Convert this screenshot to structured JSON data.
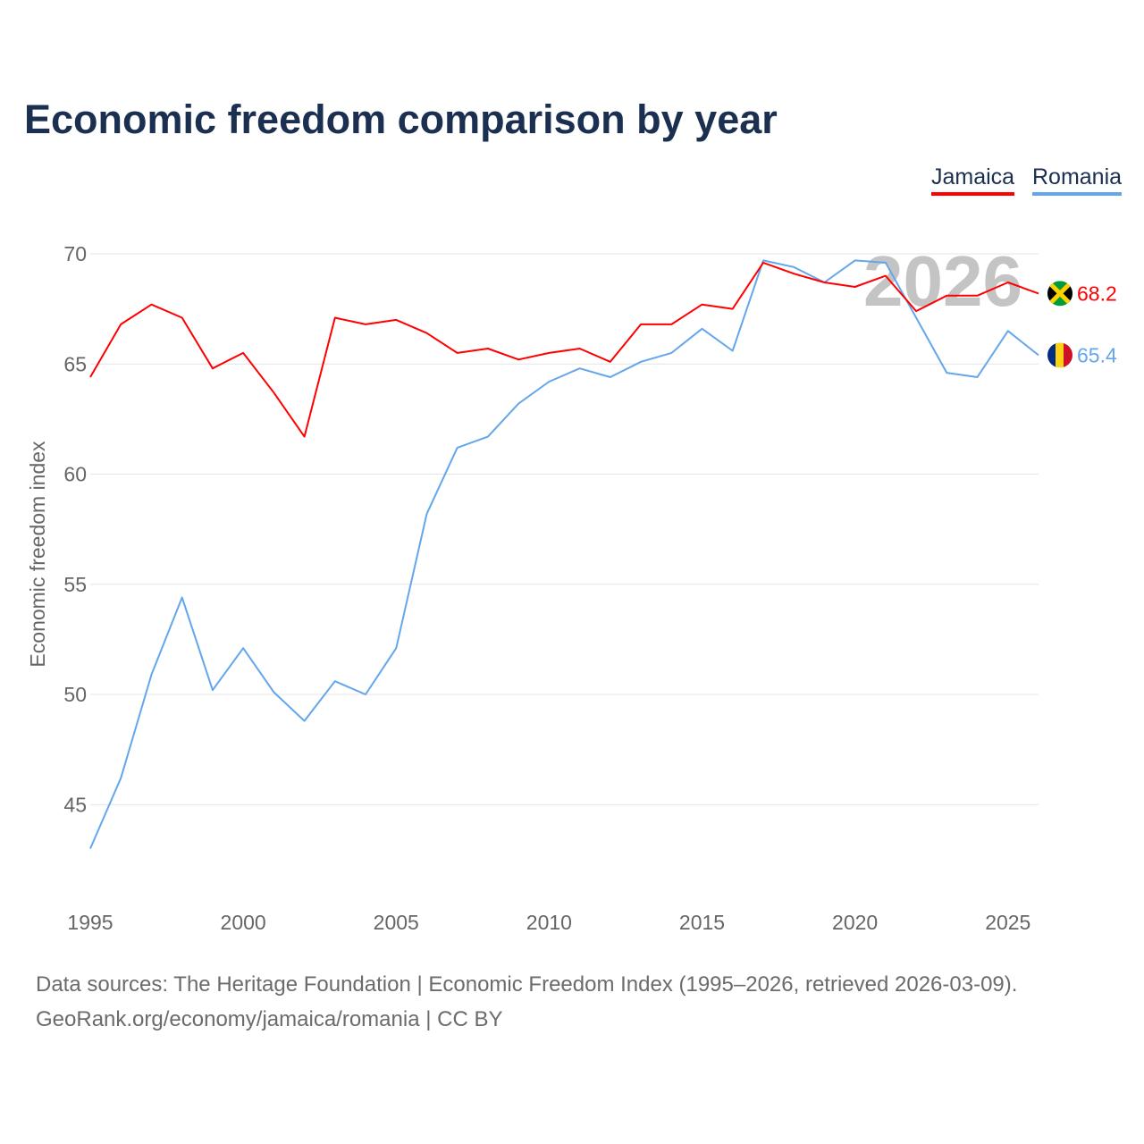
{
  "chart_data": {
    "type": "line",
    "title": "Economic freedom comparison by year",
    "xlabel": "",
    "ylabel": "Economic freedom index",
    "xlim": [
      1995,
      2026
    ],
    "ylim": [
      42,
      71
    ],
    "yticks": [
      45,
      50,
      55,
      60,
      65,
      70
    ],
    "xticks": [
      1995,
      2000,
      2005,
      2010,
      2015,
      2020,
      2025
    ],
    "grid": true,
    "legend_placement": "top-right",
    "watermark": "2026",
    "x": [
      1995,
      1996,
      1997,
      1998,
      1999,
      2000,
      2001,
      2002,
      2003,
      2004,
      2005,
      2006,
      2007,
      2008,
      2009,
      2010,
      2011,
      2012,
      2013,
      2014,
      2015,
      2016,
      2017,
      2018,
      2019,
      2020,
      2021,
      2022,
      2023,
      2024,
      2025,
      2026
    ],
    "series": [
      {
        "name": "Jamaica",
        "color": "#ff0000",
        "end_label": "68.2",
        "values": [
          64.4,
          66.8,
          67.7,
          67.1,
          64.8,
          65.5,
          63.7,
          61.7,
          67.1,
          66.8,
          67.0,
          66.4,
          65.5,
          65.7,
          65.2,
          65.5,
          65.7,
          65.1,
          66.8,
          66.8,
          67.7,
          67.5,
          69.6,
          69.1,
          68.7,
          68.5,
          69.0,
          67.4,
          68.1,
          68.1,
          68.7,
          68.2
        ]
      },
      {
        "name": "Romania",
        "color": "#63a6ec",
        "end_label": "65.4",
        "values": [
          43.0,
          46.2,
          50.9,
          54.4,
          50.2,
          52.1,
          50.1,
          48.8,
          50.6,
          50.0,
          52.1,
          58.2,
          61.2,
          61.7,
          63.2,
          64.2,
          64.8,
          64.4,
          65.1,
          65.5,
          66.6,
          65.6,
          69.7,
          69.4,
          68.7,
          69.7,
          69.6,
          67.1,
          64.6,
          64.4,
          66.5,
          65.4
        ]
      }
    ]
  },
  "footer": {
    "line1": "Data sources: The Heritage Foundation | Economic Freedom Index (1995–2026, retrieved 2026-03-09).",
    "line2": "GeoRank.org/economy/jamaica/romania | CC BY"
  }
}
